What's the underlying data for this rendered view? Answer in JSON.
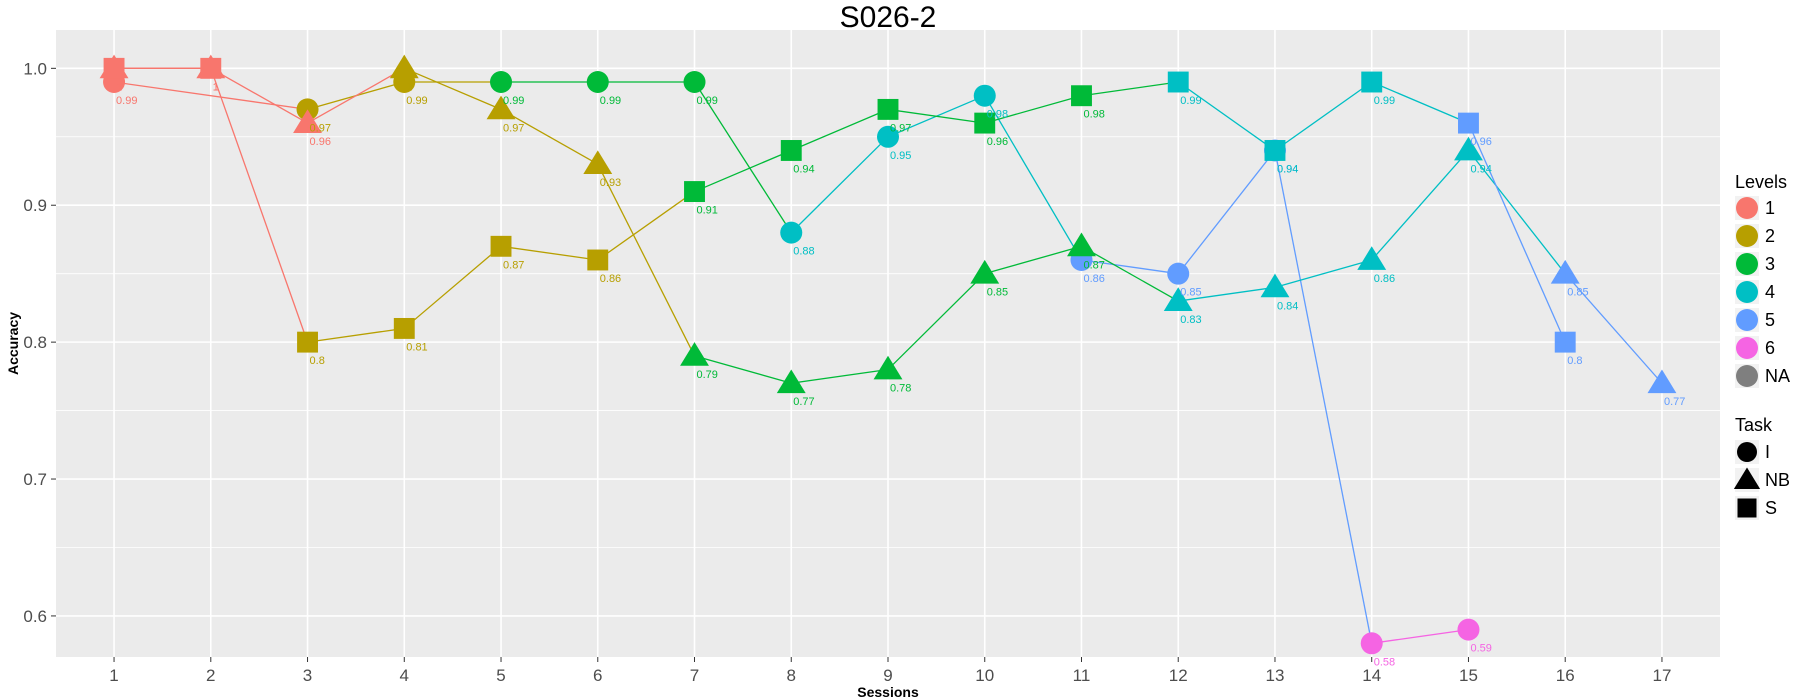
{
  "chart_data": {
    "type": "line",
    "title": "S026-2",
    "xlabel": "Sessions",
    "ylabel": "Accuracy",
    "xlim": [
      0.4,
      17.6
    ],
    "ylim": [
      0.57,
      1.028
    ],
    "x_ticks": [
      1,
      2,
      3,
      4,
      5,
      6,
      7,
      8,
      9,
      10,
      11,
      12,
      13,
      14,
      15,
      16,
      17
    ],
    "y_ticks": [
      0.6,
      0.7,
      0.8,
      0.9,
      1.0
    ],
    "y_tick_labels": [
      "0.6",
      "0.7",
      "0.8",
      "0.9",
      "1.0"
    ],
    "grid": true,
    "legend_position": "right",
    "level_colors": {
      "1": "#F8766D",
      "2": "#B79F00",
      "3": "#00BA38",
      "4": "#00BFC4",
      "5": "#619CFF",
      "6": "#F564E3",
      "NA": "#7F7F7F"
    },
    "legends": {
      "levels": {
        "title": "Levels",
        "items": [
          {
            "label": "1",
            "color": "#F8766D"
          },
          {
            "label": "2",
            "color": "#B79F00"
          },
          {
            "label": "3",
            "color": "#00BA38"
          },
          {
            "label": "4",
            "color": "#00BFC4"
          },
          {
            "label": "5",
            "color": "#619CFF"
          },
          {
            "label": "6",
            "color": "#F564E3"
          },
          {
            "label": "NA",
            "color": "#7F7F7F"
          }
        ]
      },
      "task": {
        "title": "Task",
        "items": [
          {
            "label": "I",
            "shape": "circle"
          },
          {
            "label": "NB",
            "shape": "triangle"
          },
          {
            "label": "S",
            "shape": "square"
          }
        ]
      }
    },
    "series": [
      {
        "task": "I",
        "shape": "circle",
        "points": [
          {
            "x": 1,
            "y": 0.99,
            "level": "1",
            "label": "0.99"
          },
          {
            "x": 3,
            "y": 0.97,
            "level": "2",
            "label": "0.97"
          },
          {
            "x": 4,
            "y": 0.99,
            "level": "2",
            "label": "0.99"
          },
          {
            "x": 5,
            "y": 0.99,
            "level": "3",
            "label": "0.99"
          },
          {
            "x": 6,
            "y": 0.99,
            "level": "3",
            "label": "0.99"
          },
          {
            "x": 7,
            "y": 0.99,
            "level": "3",
            "label": "0.99"
          },
          {
            "x": 8,
            "y": 0.88,
            "level": "4",
            "label": "0.88"
          },
          {
            "x": 9,
            "y": 0.95,
            "level": "4",
            "label": "0.95"
          },
          {
            "x": 10,
            "y": 0.98,
            "level": "4",
            "label": "0.98"
          },
          {
            "x": 11,
            "y": 0.86,
            "level": "5",
            "label": "0.86"
          },
          {
            "x": 12,
            "y": 0.85,
            "level": "5",
            "label": "0.85"
          },
          {
            "x": 13,
            "y": 0.94,
            "level": "5",
            "label": "0.94"
          },
          {
            "x": 14,
            "y": 0.58,
            "level": "6",
            "label": "0.58"
          },
          {
            "x": 15,
            "y": 0.59,
            "level": "6",
            "label": "0.59"
          }
        ]
      },
      {
        "task": "NB",
        "shape": "triangle",
        "points": [
          {
            "x": 1,
            "y": 1.0,
            "level": "1",
            "label": "1"
          },
          {
            "x": 2,
            "y": 1.0,
            "level": "1",
            "label": "1"
          },
          {
            "x": 3,
            "y": 0.96,
            "level": "1",
            "label": "0.96"
          },
          {
            "x": 4,
            "y": 1.0,
            "level": "2",
            "label": "1"
          },
          {
            "x": 5,
            "y": 0.97,
            "level": "2",
            "label": "0.97"
          },
          {
            "x": 6,
            "y": 0.93,
            "level": "2",
            "label": "0.93"
          },
          {
            "x": 7,
            "y": 0.79,
            "level": "3",
            "label": "0.79"
          },
          {
            "x": 8,
            "y": 0.77,
            "level": "3",
            "label": "0.77"
          },
          {
            "x": 9,
            "y": 0.78,
            "level": "3",
            "label": "0.78"
          },
          {
            "x": 10,
            "y": 0.85,
            "level": "3",
            "label": "0.85"
          },
          {
            "x": 11,
            "y": 0.87,
            "level": "3",
            "label": "0.87"
          },
          {
            "x": 12,
            "y": 0.83,
            "level": "4",
            "label": "0.83"
          },
          {
            "x": 13,
            "y": 0.84,
            "level": "4",
            "label": "0.84"
          },
          {
            "x": 14,
            "y": 0.86,
            "level": "4",
            "label": "0.86"
          },
          {
            "x": 15,
            "y": 0.94,
            "level": "4",
            "label": "0.94"
          },
          {
            "x": 16,
            "y": 0.85,
            "level": "5",
            "label": "0.85"
          },
          {
            "x": 17,
            "y": 0.77,
            "level": "5",
            "label": "0.77"
          }
        ]
      },
      {
        "task": "S",
        "shape": "square",
        "points": [
          {
            "x": 1,
            "y": 1.0,
            "level": "1",
            "label": "1"
          },
          {
            "x": 2,
            "y": 1.0,
            "level": "1",
            "label": "1"
          },
          {
            "x": 3,
            "y": 0.8,
            "level": "2",
            "label": "0.8"
          },
          {
            "x": 4,
            "y": 0.81,
            "level": "2",
            "label": "0.81"
          },
          {
            "x": 5,
            "y": 0.87,
            "level": "2",
            "label": "0.87"
          },
          {
            "x": 6,
            "y": 0.86,
            "level": "2",
            "label": "0.86"
          },
          {
            "x": 7,
            "y": 0.91,
            "level": "3",
            "label": "0.91"
          },
          {
            "x": 8,
            "y": 0.94,
            "level": "3",
            "label": "0.94"
          },
          {
            "x": 9,
            "y": 0.97,
            "level": "3",
            "label": "0.97"
          },
          {
            "x": 10,
            "y": 0.96,
            "level": "3",
            "label": "0.96"
          },
          {
            "x": 11,
            "y": 0.98,
            "level": "3",
            "label": "0.98"
          },
          {
            "x": 12,
            "y": 0.99,
            "level": "4",
            "label": "0.99"
          },
          {
            "x": 13,
            "y": 0.94,
            "level": "4",
            "label": "0.94"
          },
          {
            "x": 14,
            "y": 0.99,
            "level": "4",
            "label": "0.99"
          },
          {
            "x": 15,
            "y": 0.96,
            "level": "5",
            "label": "0.96"
          },
          {
            "x": 16,
            "y": 0.8,
            "level": "5",
            "label": "0.8"
          }
        ]
      }
    ]
  }
}
